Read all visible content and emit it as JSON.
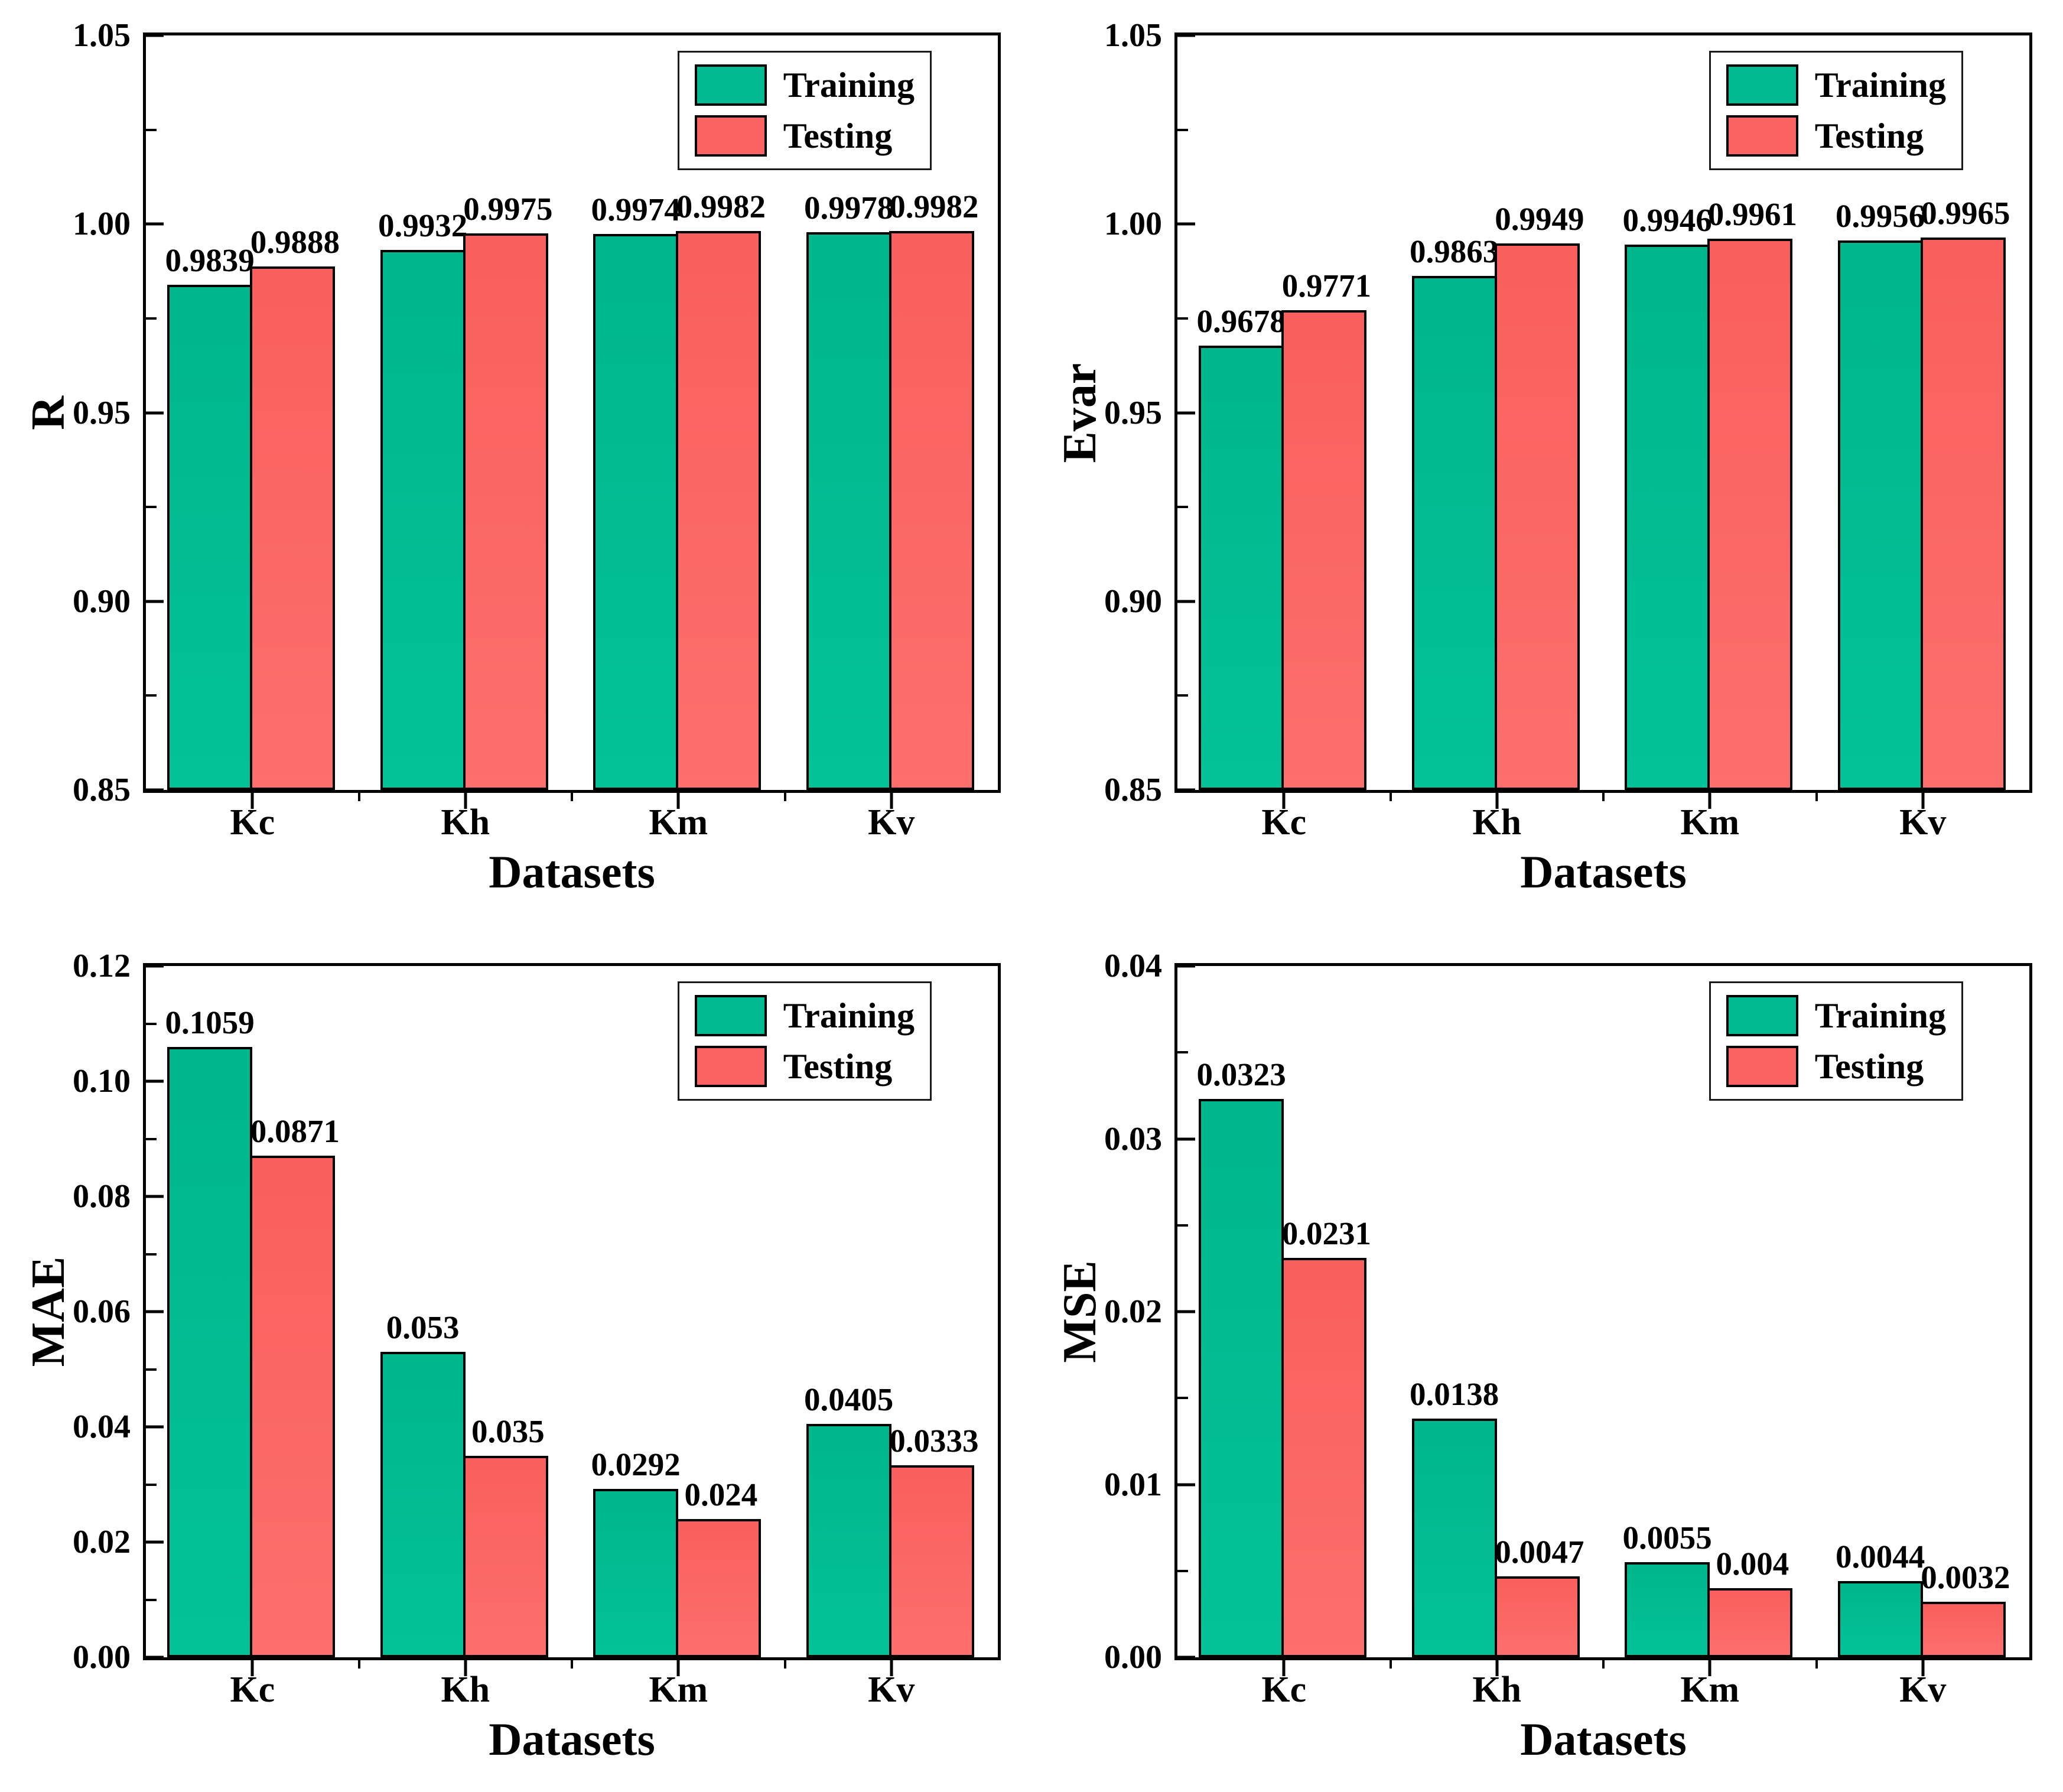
{
  "figure": {
    "background": "#ffffff",
    "colors": {
      "training": "#00ba92",
      "testing": "#fa6361",
      "bar_border": "#000000",
      "axis": "#000000",
      "legend_border": "#1a1a1a"
    }
  },
  "chart_data": [
    {
      "type": "bar",
      "title": "",
      "ylabel": "R",
      "xlabel": "Datasets",
      "categories": [
        "Kc",
        "Kh",
        "Km",
        "Kv"
      ],
      "ylim": [
        0.85,
        1.05
      ],
      "grid": false,
      "legend_position": "upper right",
      "yticks": [
        {
          "v": 0.85,
          "label": "0.85"
        },
        {
          "v": 0.9,
          "label": "0.90"
        },
        {
          "v": 0.95,
          "label": "0.95"
        },
        {
          "v": 1.0,
          "label": "1.00"
        },
        {
          "v": 1.05,
          "label": "1.05"
        }
      ],
      "yminor": [
        0.875,
        0.925,
        0.975,
        1.025
      ],
      "series": [
        {
          "name": "Training",
          "values": [
            0.9839,
            0.9932,
            0.9974,
            0.9978
          ],
          "data_labels": [
            "0.9839",
            "0.9932",
            "0.9974",
            "0.9978"
          ]
        },
        {
          "name": "Testing",
          "values": [
            0.9888,
            0.9975,
            0.9982,
            0.9982
          ],
          "data_labels": [
            "0.9888",
            "0.9975",
            "0.9982",
            "0.9982"
          ]
        }
      ]
    },
    {
      "type": "bar",
      "title": "",
      "ylabel": "Evar",
      "xlabel": "Datasets",
      "categories": [
        "Kc",
        "Kh",
        "Km",
        "Kv"
      ],
      "ylim": [
        0.85,
        1.05
      ],
      "grid": false,
      "legend_position": "upper right",
      "yticks": [
        {
          "v": 0.85,
          "label": "0.85"
        },
        {
          "v": 0.9,
          "label": "0.90"
        },
        {
          "v": 0.95,
          "label": "0.95"
        },
        {
          "v": 1.0,
          "label": "1.00"
        },
        {
          "v": 1.05,
          "label": "1.05"
        }
      ],
      "yminor": [
        0.875,
        0.925,
        0.975,
        1.025
      ],
      "series": [
        {
          "name": "Training",
          "values": [
            0.9678,
            0.9863,
            0.9946,
            0.9956
          ],
          "data_labels": [
            "0.9678",
            "0.9863",
            "0.9946",
            "0.9956"
          ]
        },
        {
          "name": "Testing",
          "values": [
            0.9771,
            0.9949,
            0.9961,
            0.9965
          ],
          "data_labels": [
            "0.9771",
            "0.9949",
            "0.9961",
            "0.9965"
          ]
        }
      ]
    },
    {
      "type": "bar",
      "title": "",
      "ylabel": "MAE",
      "xlabel": "Datasets",
      "categories": [
        "Kc",
        "Kh",
        "Km",
        "Kv"
      ],
      "ylim": [
        0.0,
        0.12
      ],
      "grid": false,
      "legend_position": "upper right",
      "yticks": [
        {
          "v": 0.0,
          "label": "0.00"
        },
        {
          "v": 0.02,
          "label": "0.02"
        },
        {
          "v": 0.04,
          "label": "0.04"
        },
        {
          "v": 0.06,
          "label": "0.06"
        },
        {
          "v": 0.08,
          "label": "0.08"
        },
        {
          "v": 0.1,
          "label": "0.10"
        },
        {
          "v": 0.12,
          "label": "0.12"
        }
      ],
      "yminor": [
        0.01,
        0.03,
        0.05,
        0.07,
        0.09,
        0.11
      ],
      "series": [
        {
          "name": "Training",
          "values": [
            0.1059,
            0.053,
            0.0292,
            0.0405
          ],
          "data_labels": [
            "0.1059",
            "0.053",
            "0.0292",
            "0.0405"
          ]
        },
        {
          "name": "Testing",
          "values": [
            0.0871,
            0.035,
            0.024,
            0.0333
          ],
          "data_labels": [
            "0.0871",
            "0.035",
            "0.024",
            "0.0333"
          ]
        }
      ]
    },
    {
      "type": "bar",
      "title": "",
      "ylabel": "MSE",
      "xlabel": "Datasets",
      "categories": [
        "Kc",
        "Kh",
        "Km",
        "Kv"
      ],
      "ylim": [
        0.0,
        0.04
      ],
      "grid": false,
      "legend_position": "upper right",
      "yticks": [
        {
          "v": 0.0,
          "label": "0.00"
        },
        {
          "v": 0.01,
          "label": "0.01"
        },
        {
          "v": 0.02,
          "label": "0.02"
        },
        {
          "v": 0.03,
          "label": "0.03"
        },
        {
          "v": 0.04,
          "label": "0.04"
        }
      ],
      "yminor": [
        0.005,
        0.015,
        0.025,
        0.035
      ],
      "series": [
        {
          "name": "Training",
          "values": [
            0.0323,
            0.0138,
            0.0055,
            0.0044
          ],
          "data_labels": [
            "0.0323",
            "0.0138",
            "0.0055",
            "0.0044"
          ]
        },
        {
          "name": "Testing",
          "values": [
            0.0231,
            0.0047,
            0.004,
            0.0032
          ],
          "data_labels": [
            "0.0231",
            "0.0047",
            "0.004",
            "0.0032"
          ]
        }
      ]
    }
  ]
}
